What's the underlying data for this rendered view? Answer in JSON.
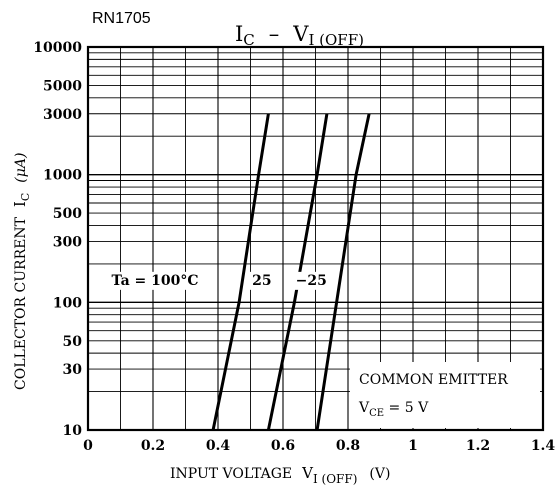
{
  "chart_data": {
    "type": "line",
    "part_number": "RN1705",
    "title": {
      "main": "I",
      "main_sub": "C",
      "dash": "–",
      "right": "V",
      "right_sub": "I (OFF)"
    },
    "xlabel": {
      "text": "INPUT VOLTAGE",
      "sym": "V",
      "sym_sub": "I (OFF)",
      "unit": "(V)"
    },
    "ylabel": {
      "text": "COLLECTOR CURRENT",
      "sym": "I",
      "sym_sub": "C",
      "unit": "(μA)"
    },
    "xlim": [
      0,
      1.4
    ],
    "ylim": [
      10,
      10000
    ],
    "yscale": "log",
    "grid": true,
    "xticks": [
      "0",
      "0.2",
      "0.4",
      "0.6",
      "0.8",
      "1",
      "1.2",
      "1.4"
    ],
    "yticks": [
      "10",
      "30",
      "50",
      "100",
      "300",
      "500",
      "1000",
      "3000",
      "5000",
      "10000"
    ],
    "series": [
      {
        "name": "Ta = 100°C",
        "points": [
          [
            0.385,
            10
          ],
          [
            0.465,
            100
          ],
          [
            0.525,
            1000
          ],
          [
            0.555,
            3000
          ]
        ]
      },
      {
        "name": "25",
        "points": [
          [
            0.555,
            10
          ],
          [
            0.635,
            100
          ],
          [
            0.705,
            1000
          ],
          [
            0.735,
            3000
          ]
        ]
      },
      {
        "name": "−25",
        "points": [
          [
            0.705,
            10
          ],
          [
            0.765,
            100
          ],
          [
            0.825,
            1000
          ],
          [
            0.865,
            3000
          ]
        ]
      }
    ],
    "annotation": {
      "line1": "COMMON EMITTER",
      "line2_sym": "V",
      "line2_sub": "CE",
      "line2_rest": " = 5 V"
    }
  }
}
